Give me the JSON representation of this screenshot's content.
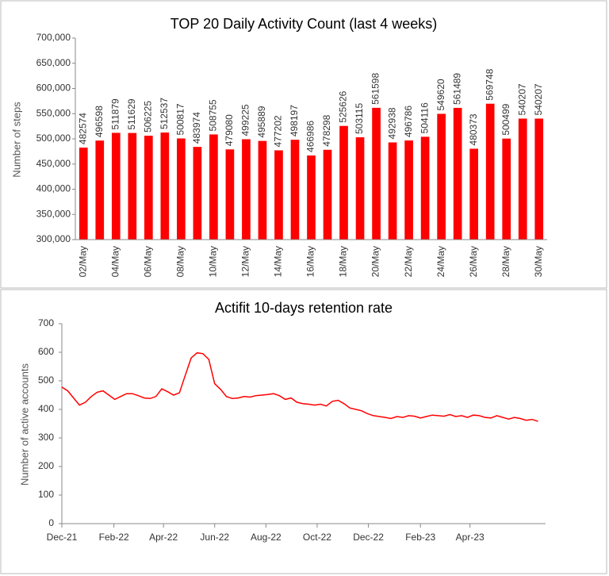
{
  "chart_data": [
    {
      "type": "bar",
      "title": "TOP 20 Daily Activity Count (last 4 weeks)",
      "y_label": "Number of steps",
      "color": "#ff0000",
      "categories": [
        "02/May",
        null,
        "04/May",
        null,
        "06/May",
        null,
        "08/May",
        null,
        "10/May",
        null,
        "12/May",
        null,
        "14/May",
        null,
        "16/May",
        null,
        "18/May",
        null,
        "20/May",
        null,
        "22/May",
        null,
        "24/May",
        null,
        "26/May",
        null,
        "28/May",
        null,
        "30/May"
      ],
      "values": [
        482574,
        496598,
        511879,
        511629,
        506225,
        512537,
        500817,
        483974,
        508755,
        479080,
        499225,
        495889,
        477202,
        498197,
        466986,
        478298,
        525626,
        503115,
        561598,
        492938,
        496786,
        504116,
        549620,
        561489,
        480373,
        569748,
        500499,
        540207,
        540207
      ],
      "ylim": [
        300000,
        700000
      ],
      "yticks": [
        {
          "value": 300000,
          "label": "300,000"
        },
        {
          "value": 350000,
          "label": "350,000"
        },
        {
          "value": 400000,
          "label": "400,000"
        },
        {
          "value": 450000,
          "label": "450,000"
        },
        {
          "value": 500000,
          "label": "500,000"
        },
        {
          "value": 550000,
          "label": "550,000"
        },
        {
          "value": 600000,
          "label": "600,000"
        },
        {
          "value": 650000,
          "label": "650,000"
        },
        {
          "value": 700000,
          "label": "700,000"
        }
      ]
    },
    {
      "type": "line",
      "title": "Actifit 10-days retention rate",
      "y_label": "Number of active accounts",
      "color": "#ff0000",
      "x": [
        0,
        7,
        14,
        21,
        28,
        35,
        42,
        49,
        56,
        63,
        70,
        77,
        84,
        91,
        98,
        105,
        112,
        119,
        126,
        133,
        140,
        147,
        154,
        161,
        168,
        175,
        182,
        189,
        196,
        203,
        210,
        217,
        224,
        231,
        238,
        245,
        252,
        259,
        266,
        273,
        280,
        287,
        294,
        301,
        308,
        315,
        322,
        329,
        336,
        343,
        350,
        357,
        364,
        371,
        378,
        385,
        392,
        399,
        406,
        413,
        420,
        427,
        434,
        441,
        448,
        455,
        462,
        469,
        476,
        483,
        490,
        497,
        504,
        511,
        518,
        525,
        532,
        539,
        546,
        553,
        560,
        567
      ],
      "values": [
        478,
        465,
        440,
        415,
        425,
        445,
        460,
        465,
        450,
        435,
        445,
        455,
        455,
        448,
        440,
        438,
        445,
        472,
        462,
        450,
        458,
        520,
        580,
        598,
        595,
        575,
        490,
        470,
        445,
        438,
        440,
        445,
        443,
        448,
        450,
        452,
        455,
        448,
        435,
        440,
        425,
        420,
        418,
        415,
        418,
        412,
        428,
        432,
        420,
        405,
        400,
        395,
        385,
        378,
        375,
        372,
        368,
        375,
        372,
        378,
        376,
        370,
        375,
        380,
        378,
        376,
        382,
        375,
        378,
        372,
        380,
        378,
        372,
        370,
        378,
        372,
        366,
        372,
        368,
        362,
        365,
        358
      ],
      "xlim": [
        0,
        576
      ],
      "xticks": [
        {
          "value": 0,
          "label": "Dec-21"
        },
        {
          "value": 62,
          "label": "Feb-22"
        },
        {
          "value": 121,
          "label": "Apr-22"
        },
        {
          "value": 182,
          "label": "Jun-22"
        },
        {
          "value": 243,
          "label": "Aug-22"
        },
        {
          "value": 304,
          "label": "Oct-22"
        },
        {
          "value": 365,
          "label": "Dec-22"
        },
        {
          "value": 427,
          "label": "Feb-23"
        },
        {
          "value": 486,
          "label": "Apr-23"
        }
      ],
      "ylim": [
        0,
        700
      ],
      "yticks": [
        0,
        100,
        200,
        300,
        400,
        500,
        600,
        700
      ]
    }
  ]
}
